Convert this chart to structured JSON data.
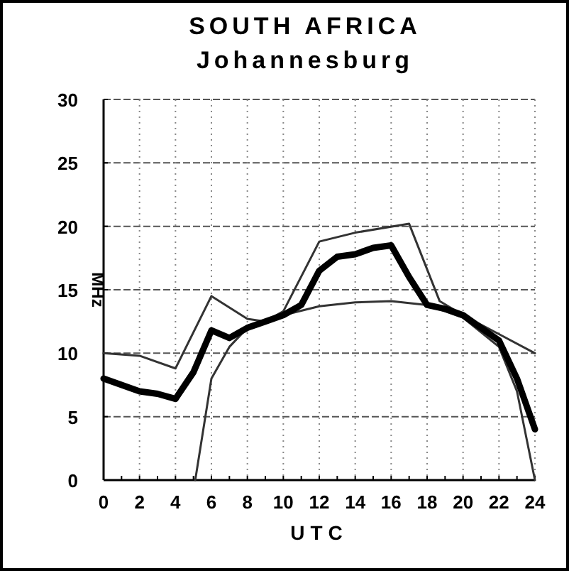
{
  "chart_data": {
    "type": "line",
    "title": "SOUTH AFRICA",
    "subtitle": "Johannesburg",
    "xlabel": "UTC",
    "ylabel": "MHz",
    "xlim": [
      0,
      24
    ],
    "xticks": [
      0,
      {
        "value": 1,
        "label": null
      },
      2,
      {
        "value": 3,
        "label": null
      },
      4,
      {
        "value": 5,
        "label": null
      },
      6,
      {
        "value": 7,
        "label": null
      },
      8,
      {
        "value": 9,
        "label": null
      },
      10,
      {
        "value": 11,
        "label": null
      },
      12,
      {
        "value": 13,
        "label": null
      },
      14,
      {
        "value": 15,
        "label": null
      },
      16,
      {
        "value": 17,
        "label": null
      },
      18,
      {
        "value": 19,
        "label": null
      },
      20,
      {
        "value": 21,
        "label": null
      },
      22,
      {
        "value": 23,
        "label": null
      },
      24
    ],
    "ylim": [
      0,
      30
    ],
    "yticks": [
      0,
      5,
      10,
      15,
      20,
      25,
      30
    ],
    "grid": true,
    "marker": "none",
    "line_style": "solid",
    "series": [
      {
        "color": "#333333",
        "x": [
          0,
          2,
          4,
          6,
          8,
          9,
          10,
          12,
          14,
          17,
          18.7,
          20,
          22,
          24
        ],
        "values": [
          10,
          9.8,
          8.8,
          14.5,
          12.7,
          12.5,
          13.3,
          18.8,
          19.5,
          20.2,
          14.1,
          13,
          11.5,
          10
        ]
      },
      {
        "color": "#333333",
        "x": [
          5.1,
          6,
          7,
          8,
          10,
          12,
          14,
          16,
          18,
          20,
          22,
          23,
          24
        ],
        "values": [
          0,
          8,
          10.5,
          12,
          13,
          13.7,
          14,
          14.1,
          13.8,
          12.8,
          10.5,
          7,
          0
        ]
      },
      {
        "color": "#000000",
        "x": [
          0,
          1,
          2,
          3,
          4,
          5,
          6,
          7,
          8,
          9,
          10,
          11,
          12,
          13,
          14,
          15,
          16,
          17,
          18,
          19,
          20,
          21,
          22,
          23,
          24
        ],
        "values": [
          8,
          7.5,
          7,
          6.8,
          6.4,
          8.5,
          11.8,
          11.2,
          12,
          12.5,
          13,
          13.8,
          16.5,
          17.6,
          17.8,
          18.3,
          18.5,
          16,
          13.8,
          13.5,
          13,
          12,
          11,
          8,
          4
        ]
      }
    ]
  }
}
